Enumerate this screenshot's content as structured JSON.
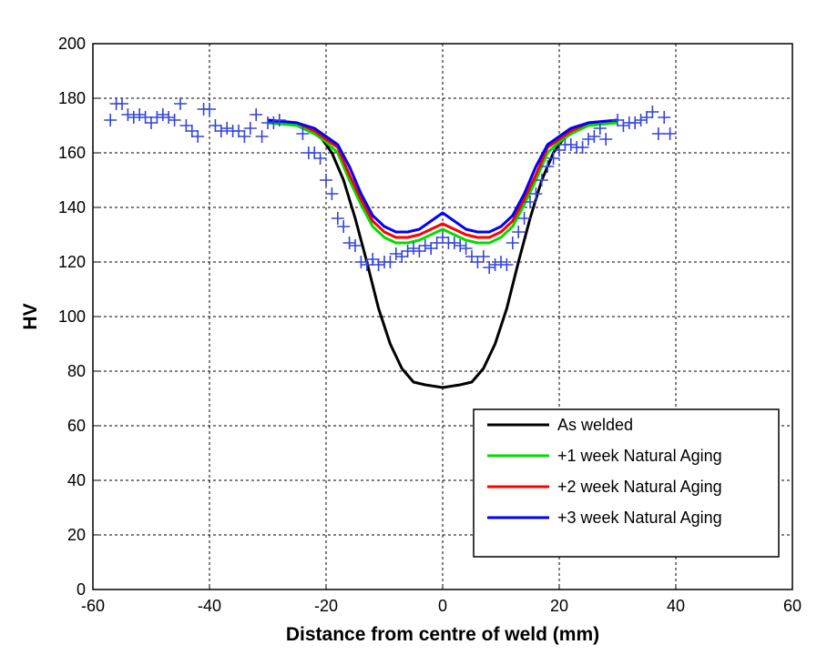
{
  "chart_data": {
    "type": "line",
    "title": "",
    "xlabel": "Distance from centre of weld (mm)",
    "ylabel": "HV",
    "xlim": [
      -60,
      60
    ],
    "ylim": [
      0,
      200
    ],
    "xticks": [
      -60,
      -40,
      -20,
      0,
      20,
      40,
      60
    ],
    "yticks": [
      0,
      20,
      40,
      60,
      80,
      100,
      120,
      140,
      160,
      180,
      200
    ],
    "grid": true,
    "legend_position": "bottom-right",
    "series": [
      {
        "name": "As welded",
        "color": "#000000",
        "x": [
          -23,
          -21,
          -19,
          -17,
          -15,
          -13,
          -11,
          -9,
          -7,
          -5,
          -3,
          0,
          3,
          5,
          7,
          9,
          11,
          13,
          15,
          17,
          19,
          21,
          23
        ],
        "y": [
          168,
          166,
          160,
          150,
          136,
          120,
          103,
          90,
          81,
          76,
          75,
          74,
          75,
          76,
          81,
          90,
          103,
          120,
          136,
          150,
          160,
          166,
          168
        ]
      },
      {
        "name": "+1 week Natural Aging",
        "color": "#00dd00",
        "x": [
          -30,
          -25,
          -22,
          -20,
          -18,
          -16,
          -14,
          -12,
          -10,
          -8,
          -6,
          -4,
          -2,
          0,
          2,
          4,
          6,
          8,
          10,
          12,
          14,
          16,
          18,
          20,
          22,
          25,
          30
        ],
        "y": [
          171,
          170,
          167,
          164,
          160,
          150,
          141,
          133,
          129,
          127,
          127,
          128,
          130,
          132,
          130,
          128,
          127,
          127,
          129,
          133,
          141,
          150,
          160,
          164,
          167,
          170,
          171
        ]
      },
      {
        "name": "+2 week Natural Aging",
        "color": "#ff0000",
        "x": [
          -30,
          -25,
          -22,
          -20,
          -18,
          -16,
          -14,
          -12,
          -10,
          -8,
          -6,
          -4,
          -2,
          0,
          2,
          4,
          6,
          8,
          10,
          12,
          14,
          16,
          18,
          20,
          22,
          25,
          30
        ],
        "y": [
          172,
          171,
          168,
          165,
          162,
          152,
          143,
          135,
          131,
          129,
          129,
          130,
          132,
          134,
          132,
          130,
          129,
          129,
          131,
          135,
          143,
          152,
          162,
          165,
          168,
          171,
          172
        ]
      },
      {
        "name": "+3 week Natural Aging",
        "color": "#0000ff",
        "x": [
          -30,
          -25,
          -22,
          -20,
          -18,
          -16,
          -14,
          -12,
          -10,
          -8,
          -6,
          -4,
          -2,
          0,
          2,
          4,
          6,
          8,
          10,
          12,
          14,
          16,
          18,
          20,
          22,
          25,
          30
        ],
        "y": [
          172,
          171,
          169,
          166,
          163,
          155,
          145,
          137,
          133,
          131,
          131,
          132,
          135,
          138,
          135,
          132,
          131,
          131,
          133,
          137,
          145,
          155,
          163,
          166,
          169,
          171,
          172
        ]
      }
    ],
    "scatter": {
      "marker": "+",
      "color": "#3344dd",
      "points": [
        [
          -57,
          172
        ],
        [
          -56,
          178
        ],
        [
          -55,
          178
        ],
        [
          -54,
          174
        ],
        [
          -53,
          173
        ],
        [
          -52,
          174
        ],
        [
          -51,
          173
        ],
        [
          -50,
          171
        ],
        [
          -49,
          173
        ],
        [
          -48,
          174
        ],
        [
          -47,
          173
        ],
        [
          -46,
          172
        ],
        [
          -45,
          178
        ],
        [
          -44,
          170
        ],
        [
          -43,
          168
        ],
        [
          -42,
          166
        ],
        [
          -41,
          176
        ],
        [
          -40,
          176
        ],
        [
          -39,
          170
        ],
        [
          -38,
          168
        ],
        [
          -37,
          169
        ],
        [
          -36,
          168
        ],
        [
          -35,
          168
        ],
        [
          -34,
          166
        ],
        [
          -33,
          169
        ],
        [
          -32,
          174
        ],
        [
          -31,
          166
        ],
        [
          -30,
          171
        ],
        [
          -29,
          171
        ],
        [
          -28,
          172
        ],
        [
          -24,
          167
        ],
        [
          -23,
          160
        ],
        [
          -22,
          160
        ],
        [
          -21,
          158
        ],
        [
          -20,
          150
        ],
        [
          -19,
          145
        ],
        [
          -18,
          136
        ],
        [
          -17,
          133
        ],
        [
          -16,
          127
        ],
        [
          -15,
          126
        ],
        [
          -14,
          120
        ],
        [
          -13,
          119
        ],
        [
          -12,
          121
        ],
        [
          -11,
          119
        ],
        [
          -10,
          120
        ],
        [
          -9,
          120
        ],
        [
          -8,
          123
        ],
        [
          -7,
          122
        ],
        [
          -6,
          124
        ],
        [
          -5,
          125
        ],
        [
          -4,
          124
        ],
        [
          -3,
          126
        ],
        [
          -2,
          125
        ],
        [
          -1,
          127
        ],
        [
          0,
          129
        ],
        [
          1,
          127
        ],
        [
          2,
          127
        ],
        [
          3,
          126
        ],
        [
          4,
          125
        ],
        [
          5,
          122
        ],
        [
          6,
          120
        ],
        [
          7,
          122
        ],
        [
          8,
          118
        ],
        [
          9,
          119
        ],
        [
          10,
          120
        ],
        [
          11,
          119
        ],
        [
          12,
          127
        ],
        [
          13,
          131
        ],
        [
          14,
          136
        ],
        [
          15,
          142
        ],
        [
          16,
          145
        ],
        [
          17,
          150
        ],
        [
          18,
          155
        ],
        [
          19,
          158
        ],
        [
          20,
          161
        ],
        [
          21,
          163
        ],
        [
          22,
          163
        ],
        [
          23,
          162
        ],
        [
          24,
          162
        ],
        [
          25,
          165
        ],
        [
          26,
          166
        ],
        [
          27,
          169
        ],
        [
          28,
          165
        ],
        [
          30,
          172
        ],
        [
          31,
          170
        ],
        [
          32,
          171
        ],
        [
          33,
          171
        ],
        [
          34,
          172
        ],
        [
          35,
          173
        ],
        [
          36,
          175
        ],
        [
          37,
          167
        ],
        [
          38,
          173
        ],
        [
          39,
          167
        ]
      ]
    }
  }
}
